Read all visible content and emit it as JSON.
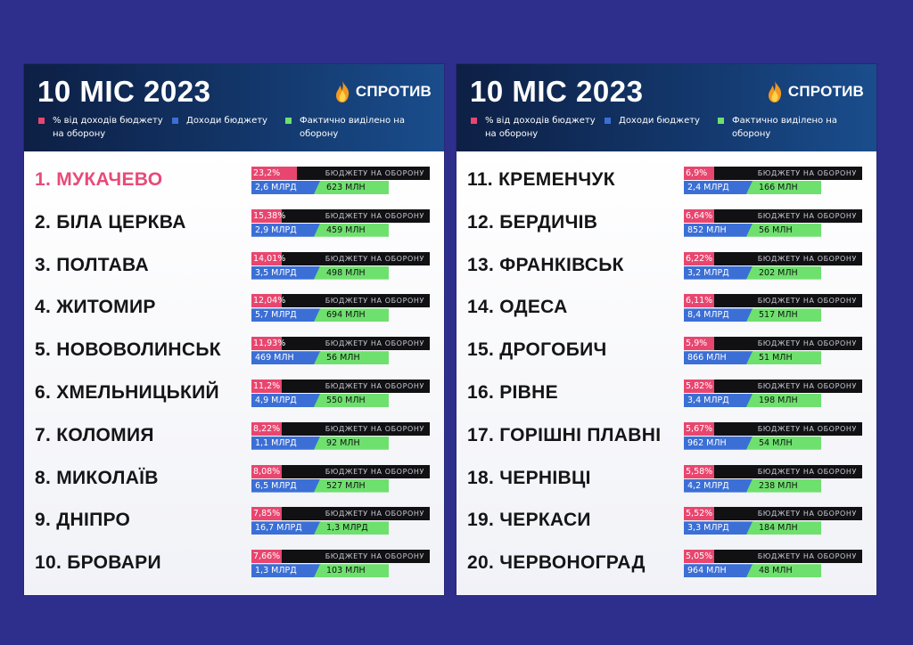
{
  "colors": {
    "background": "#2e2e8c",
    "header_dark": "#0d1f44",
    "percent": "#e8466f",
    "income": "#3b6fd6",
    "allocated": "#6ee06e",
    "budget_bar": "#111114",
    "highlight_city": "#e84a78"
  },
  "header": {
    "title": "10 МІС 2023",
    "brand": "СПРОТИВ",
    "brand_icon": "flame-icon",
    "legend": {
      "percent": "% від доходів бюджету на оборону",
      "income": "Доходи бюджету",
      "allocated": "Фактично виділено на оборону"
    }
  },
  "bar_label": "БЮДЖЕТУ НА ОБОРОНУ",
  "cities": [
    {
      "name": "1. МУКАЧЕВО",
      "percent": "23,2%",
      "income": "2,6 МЛРД",
      "allocated": "623 МЛН",
      "highlight": true
    },
    {
      "name": "2. БІЛА ЦЕРКВА",
      "percent": "15,38%",
      "income": "2,9 МЛРД",
      "allocated": "459 МЛН"
    },
    {
      "name": "3. ПОЛТАВА",
      "percent": "14,01%",
      "income": "3,5 МЛРД",
      "allocated": "498 МЛН"
    },
    {
      "name": "4. ЖИТОМИР",
      "percent": "12,04%",
      "income": "5,7 МЛРД",
      "allocated": "694 МЛН"
    },
    {
      "name": "5. НОВОВОЛИНСЬК",
      "percent": "11,93%",
      "income": "469 МЛН",
      "allocated": "56 МЛН"
    },
    {
      "name": "6. ХМЕЛЬНИЦЬКИЙ",
      "percent": "11,2%",
      "income": "4,9 МЛРД",
      "allocated": "550 МЛН"
    },
    {
      "name": "7. КОЛОМИЯ",
      "percent": "8,22%",
      "income": "1,1 МЛРД",
      "allocated": "92 МЛН"
    },
    {
      "name": "8. МИКОЛАЇВ",
      "percent": "8,08%",
      "income": "6,5 МЛРД",
      "allocated": "527 МЛН"
    },
    {
      "name": "9. ДНІПРО",
      "percent": "7,85%",
      "income": "16,7 МЛРД",
      "allocated": "1,3 МЛРД"
    },
    {
      "name": "10. БРОВАРИ",
      "percent": "7,66%",
      "income": "1,3 МЛРД",
      "allocated": "103 МЛН"
    },
    {
      "name": "11. КРЕМЕНЧУК",
      "percent": "6,9%",
      "income": "2,4 МЛРД",
      "allocated": "166 МЛН"
    },
    {
      "name": "12. БЕРДИЧІВ",
      "percent": "6,64%",
      "income": "852 МЛН",
      "allocated": "56 МЛН"
    },
    {
      "name": "13. ФРАНКІВСЬК",
      "percent": "6,22%",
      "income": "3,2 МЛРД",
      "allocated": "202 МЛН"
    },
    {
      "name": "14. ОДЕСА",
      "percent": "6,11%",
      "income": "8,4 МЛРД",
      "allocated": "517 МЛН"
    },
    {
      "name": "15. ДРОГОБИЧ",
      "percent": "5,9%",
      "income": "866 МЛН",
      "allocated": "51 МЛН"
    },
    {
      "name": "16. РІВНЕ",
      "percent": "5,82%",
      "income": "3,4 МЛРД",
      "allocated": "198 МЛН"
    },
    {
      "name": "17. ГОРІШНІ ПЛАВНІ",
      "percent": "5,67%",
      "income": "962 МЛН",
      "allocated": "54 МЛН"
    },
    {
      "name": "18. ЧЕРНІВЦІ",
      "percent": "5,58%",
      "income": "4,2 МЛРД",
      "allocated": "238 МЛН"
    },
    {
      "name": "19. ЧЕРКАСИ",
      "percent": "5,52%",
      "income": "3,3 МЛРД",
      "allocated": "184 МЛН"
    },
    {
      "name": "20. ЧЕРВОНОГРАД",
      "percent": "5,05%",
      "income": "964 МЛН",
      "allocated": "48 МЛН"
    }
  ]
}
